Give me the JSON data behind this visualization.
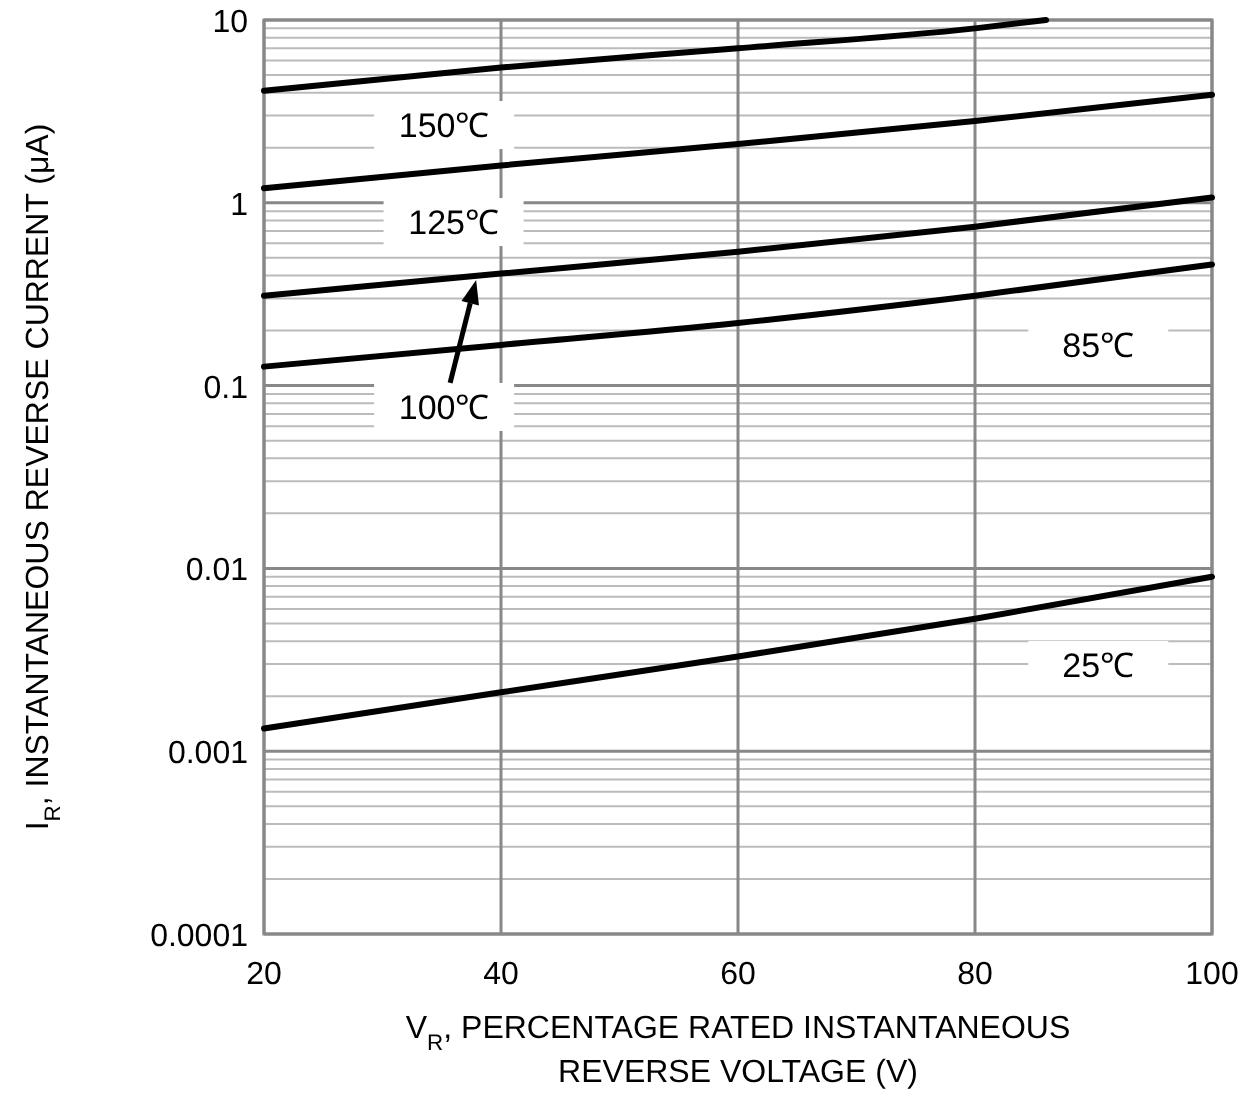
{
  "chart_data": {
    "type": "line",
    "xlabel": "V$_{R}$, PERCENTAGE RATED INSTANTANEOUS\nREVERSE VOLTAGE (V)",
    "ylabel": "I$_{R}$, INSTANTANEOUS REVERSE CURRENT (μA)",
    "log": "y",
    "grid": true,
    "marker": "none",
    "line_style": "solid",
    "xlim": [
      20,
      100
    ],
    "xticks": [
      20,
      40,
      60,
      80,
      100
    ],
    "ylim": [
      0.0001,
      10
    ],
    "yticks": [
      0.0001,
      0.001,
      0.01,
      0.1,
      1,
      10
    ],
    "series": [
      {
        "name": "150℃",
        "color": "#000000",
        "x": [
          20,
          40,
          60,
          80,
          86
        ],
        "values": [
          4.1,
          5.5,
          7.0,
          9.0,
          10
        ]
      },
      {
        "name": "125℃",
        "color": "#000000",
        "x": [
          20,
          40,
          60,
          80,
          100
        ],
        "values": [
          1.2,
          1.6,
          2.1,
          2.8,
          3.9
        ]
      },
      {
        "name": "100℃",
        "color": "#000000",
        "x": [
          20,
          40,
          60,
          80,
          100
        ],
        "values": [
          0.31,
          0.41,
          0.54,
          0.74,
          1.07
        ]
      },
      {
        "name": "85℃",
        "color": "#000000",
        "x": [
          20,
          40,
          60,
          80,
          100
        ],
        "values": [
          0.127,
          0.167,
          0.22,
          0.31,
          0.46
        ]
      },
      {
        "name": "25℃",
        "color": "#000000",
        "x": [
          20,
          40,
          60,
          80,
          100
        ],
        "values": [
          0.00133,
          0.0021,
          0.0033,
          0.0053,
          0.009
        ]
      }
    ]
  }
}
